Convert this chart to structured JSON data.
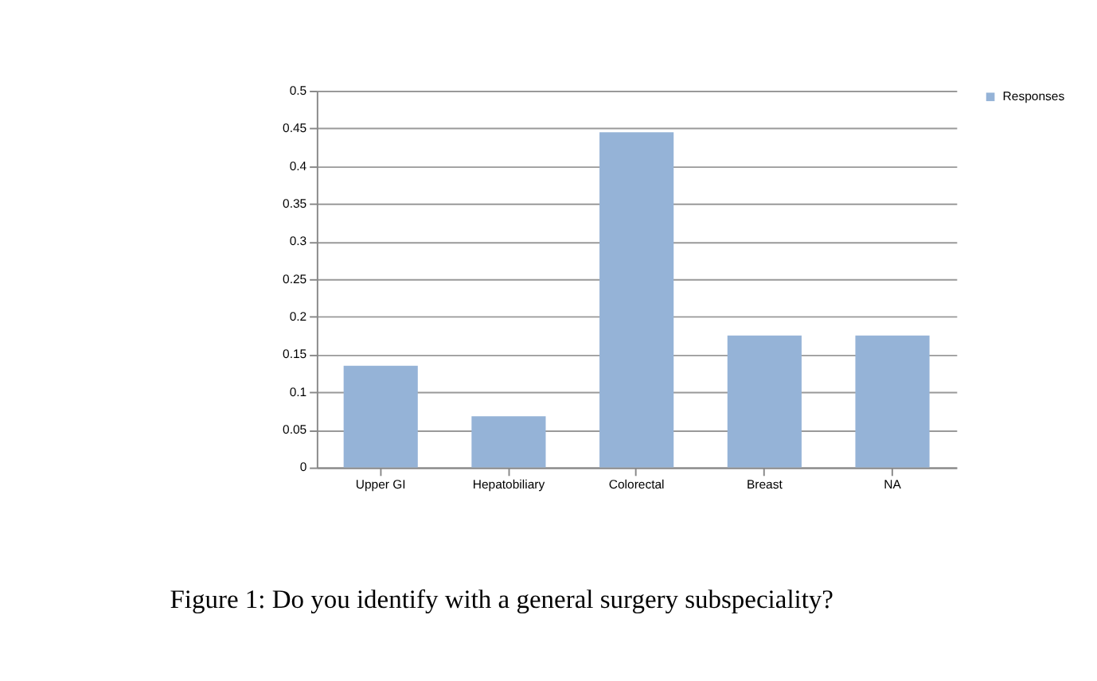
{
  "chart_data": {
    "type": "bar",
    "categories": [
      "Upper GI",
      "Hepatobiliary",
      "Colorectal",
      "Breast",
      "NA"
    ],
    "series": [
      {
        "name": "Responses",
        "color": "#95b3d7",
        "values": [
          0.135,
          0.068,
          0.445,
          0.175,
          0.175
        ]
      }
    ],
    "ylim": [
      0,
      0.5
    ],
    "yticks": [
      0,
      0.05,
      0.1,
      0.15,
      0.2,
      0.25,
      0.3,
      0.35,
      0.4,
      0.45,
      0.5
    ],
    "grid": "y",
    "legend": "right",
    "annotations": [
      "Figure 1: Do you identify with a general surgery subspeciality?"
    ]
  }
}
